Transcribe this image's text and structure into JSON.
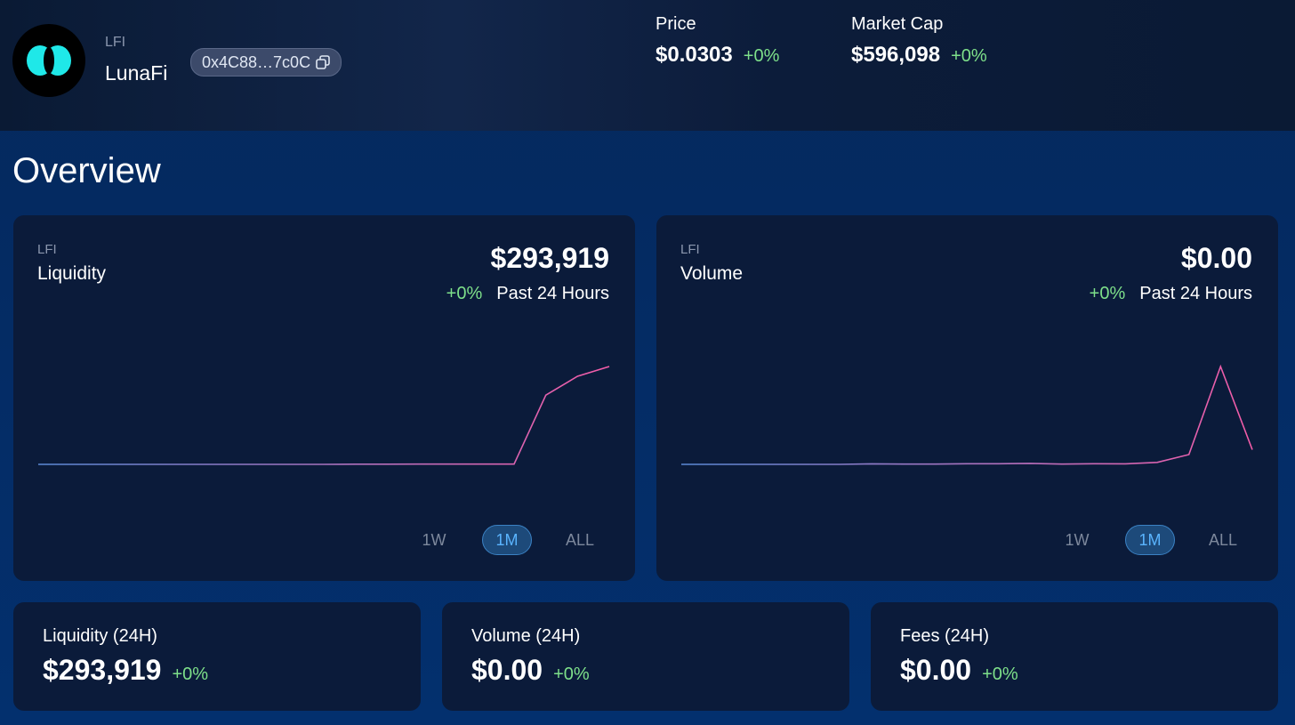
{
  "header": {
    "symbol": "LFI",
    "name": "LunaFi",
    "address": "0x4C88…7c0C",
    "stats": [
      {
        "label": "Price",
        "value": "$0.0303",
        "change": "+0%"
      },
      {
        "label": "Market Cap",
        "value": "$596,098",
        "change": "+0%"
      }
    ]
  },
  "title": "Overview",
  "cards": [
    {
      "symbol": "LFI",
      "label": "Liquidity",
      "value": "$293,919",
      "change": "+0%",
      "period": "Past 24 Hours",
      "ranges": [
        "1W",
        "1M",
        "ALL"
      ],
      "selected_range": 1
    },
    {
      "symbol": "LFI",
      "label": "Volume",
      "value": "$0.00",
      "change": "+0%",
      "period": "Past 24 Hours",
      "ranges": [
        "1W",
        "1M",
        "ALL"
      ],
      "selected_range": 1
    }
  ],
  "chart_data": [
    {
      "type": "line",
      "values": [
        0,
        0,
        0,
        0,
        0,
        0,
        0,
        0,
        0,
        0,
        500,
        500,
        800,
        800,
        800,
        800,
        208000,
        264500,
        293919
      ],
      "ylim": [
        0,
        293919
      ],
      "gradient": [
        "#5b8ad6",
        "#f45ca8"
      ]
    },
    {
      "type": "line",
      "values": [
        0,
        0,
        0,
        0,
        0,
        0,
        0.5,
        0.3,
        0.3,
        0.6,
        0.6,
        1,
        0.3,
        0.6,
        0.5,
        2,
        10,
        100,
        15
      ],
      "ylim": [
        0,
        100
      ],
      "gradient": [
        "#5b8ad6",
        "#f45ca8"
      ]
    }
  ],
  "summary": [
    {
      "label": "Liquidity (24H)",
      "value": "$293,919",
      "change": "+0%"
    },
    {
      "label": "Volume (24H)",
      "value": "$0.00",
      "change": "+0%"
    },
    {
      "label": "Fees (24H)",
      "value": "$0.00",
      "change": "+0%"
    }
  ]
}
